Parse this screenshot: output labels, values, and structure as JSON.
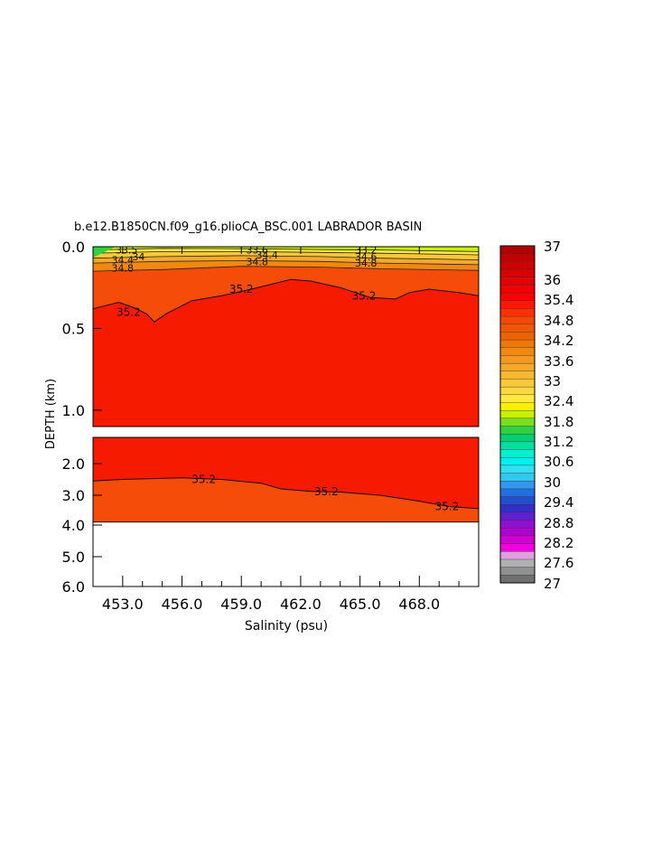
{
  "chart_data": {
    "type": "contour",
    "title": "b.e12.B1850CN.f09_g16.plioCA_BSC.001 LABRADOR BASIN",
    "xlabel": "Salinity (psu)",
    "ylabel": "DEPTH (km)",
    "x_range": [
      451.5,
      471.0
    ],
    "x_ticks": [
      "453.0",
      "456.0",
      "459.0",
      "462.0",
      "465.0",
      "468.0"
    ],
    "upper_panel": {
      "depth_range": [
        0.0,
        1.1
      ],
      "depth_ticks": [
        "0.0",
        "0.5",
        "1.0"
      ]
    },
    "lower_panel": {
      "depth_range": [
        1.5,
        6.0
      ],
      "depth_ticks": [
        "2.0",
        "3.0",
        "4.0",
        "5.0",
        "6.0"
      ],
      "seafloor_depth": 3.9
    },
    "contour_35_2_upper": [
      [
        451.5,
        0.38
      ],
      [
        452.8,
        0.34
      ],
      [
        453.5,
        0.37
      ],
      [
        454.2,
        0.41
      ],
      [
        454.6,
        0.46
      ],
      [
        455.2,
        0.41
      ],
      [
        456.5,
        0.33
      ],
      [
        458.0,
        0.3
      ],
      [
        459.5,
        0.26
      ],
      [
        460.5,
        0.23
      ],
      [
        461.5,
        0.2
      ],
      [
        462.5,
        0.21
      ],
      [
        464.0,
        0.25
      ],
      [
        465.5,
        0.31
      ],
      [
        466.8,
        0.32
      ],
      [
        467.5,
        0.28
      ],
      [
        468.5,
        0.26
      ],
      [
        470.0,
        0.28
      ],
      [
        471.0,
        0.3
      ]
    ],
    "contour_35_2_lower": [
      [
        451.5,
        2.55
      ],
      [
        453.0,
        2.5
      ],
      [
        456.0,
        2.45
      ],
      [
        458.0,
        2.5
      ],
      [
        460.0,
        2.62
      ],
      [
        461.0,
        2.8
      ],
      [
        462.5,
        2.88
      ],
      [
        464.0,
        2.9
      ],
      [
        466.0,
        3.0
      ],
      [
        468.0,
        3.2
      ],
      [
        469.5,
        3.38
      ],
      [
        471.0,
        3.45
      ]
    ],
    "contour_labels": [
      {
        "text": "35.2",
        "x": 453.3,
        "y": 0.4
      },
      {
        "text": "35.2",
        "x": 459.0,
        "y": 0.26
      },
      {
        "text": "35.2",
        "x": 465.2,
        "y": 0.3
      },
      {
        "text": "35.2",
        "x": 457.1,
        "y": 2.5
      },
      {
        "text": "35.2",
        "x": 463.3,
        "y": 2.88
      },
      {
        "text": "35.2",
        "x": 469.4,
        "y": 3.38
      },
      {
        "text": "34.8",
        "x": 453.0,
        "y": 0.13
      },
      {
        "text": "34.8",
        "x": 459.8,
        "y": 0.09
      },
      {
        "text": "34.8",
        "x": 465.3,
        "y": 0.1
      },
      {
        "text": "34.4",
        "x": 453.0,
        "y": 0.08
      },
      {
        "text": "34.4",
        "x": 460.3,
        "y": 0.05
      },
      {
        "text": "34.6",
        "x": 465.3,
        "y": 0.06
      },
      {
        "text": "34",
        "x": 453.8,
        "y": 0.06
      },
      {
        "text": "33.5",
        "x": 453.2,
        "y": 0.02
      },
      {
        "text": "33.6",
        "x": 459.8,
        "y": 0.02
      },
      {
        "text": "33.2",
        "x": 465.3,
        "y": 0.02
      }
    ],
    "colorbar": {
      "labels": [
        "37",
        "36",
        "35.4",
        "34.8",
        "34.2",
        "33.6",
        "33",
        "32.4",
        "31.8",
        "31.2",
        "30.6",
        "30",
        "29.4",
        "28.8",
        "28.2",
        "27.6",
        "27"
      ],
      "colors": [
        "#b40000",
        "#c00000",
        "#cc0000",
        "#d80000",
        "#e40000",
        "#f00000",
        "#ff0000",
        "#ff1800",
        "#ff3000",
        "#f84800",
        "#f05800",
        "#ec6400",
        "#f07800",
        "#f28810",
        "#f49820",
        "#f6a828",
        "#f8b830",
        "#fac838",
        "#fcd840",
        "#ffe840",
        "#fff000",
        "#c8f000",
        "#78e020",
        "#30d040",
        "#00d070",
        "#00e0a0",
        "#00f0d0",
        "#00f0f0",
        "#30e0f0",
        "#30c8f0",
        "#3098f0",
        "#2070e0",
        "#2050d0",
        "#3030c8",
        "#6020d0",
        "#9010d0",
        "#b000d0",
        "#d000d0",
        "#f000e0",
        "#e0a0e0",
        "#b0b0b0",
        "#909090",
        "#707070"
      ]
    }
  }
}
